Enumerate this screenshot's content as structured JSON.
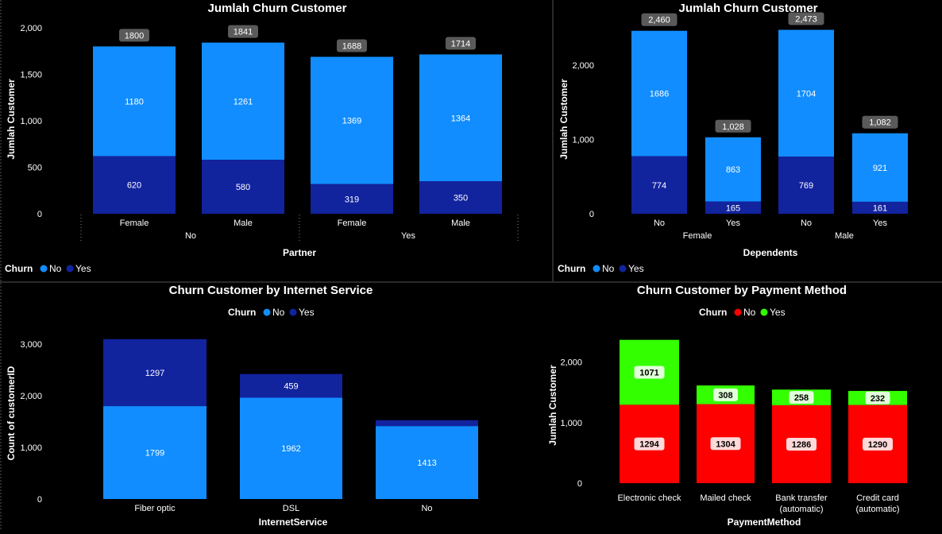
{
  "colors": {
    "no_blue": "#118DFF",
    "yes_navy": "#12239E",
    "no_red": "#FF0000",
    "yes_green": "#33FF00",
    "total_badge": "#5A5A5A",
    "divider": "#555555"
  },
  "chart_data": [
    {
      "id": "partner",
      "type": "bar",
      "stacked": true,
      "title": "Jumlah Churn Customer",
      "xlabel": "Partner",
      "ylabel": "Jumlah Customer",
      "ylim": [
        0,
        2000
      ],
      "yticks": [
        0,
        500,
        1000,
        1500,
        2000
      ],
      "ytick_labels": [
        "0",
        "500",
        "1,000",
        "1,500",
        "2,000"
      ],
      "groups": [
        "No",
        "Yes"
      ],
      "categories": [
        "Female",
        "Male",
        "Female",
        "Male"
      ],
      "category_group": [
        "No",
        "No",
        "Yes",
        "Yes"
      ],
      "legend": {
        "title": "Churn",
        "position": "bottom-left"
      },
      "series": [
        {
          "name": "No",
          "values": [
            1180,
            1261,
            1369,
            1364
          ]
        },
        {
          "name": "Yes",
          "values": [
            620,
            580,
            319,
            350
          ]
        }
      ],
      "totals": [
        "1800",
        "1841",
        "1688",
        "1714"
      ]
    },
    {
      "id": "dependents",
      "type": "bar",
      "stacked": true,
      "title": "Jumlah Churn Customer",
      "xlabel": "Dependents",
      "ylabel": "Jumlah Customer",
      "ylim": [
        0,
        2500
      ],
      "yticks": [
        0,
        1000,
        2000
      ],
      "ytick_labels": [
        "0",
        "1,000",
        "2,000"
      ],
      "groups": [
        "Female",
        "Male"
      ],
      "categories": [
        "No",
        "Yes",
        "No",
        "Yes"
      ],
      "category_group": [
        "Female",
        "Female",
        "Male",
        "Male"
      ],
      "legend": {
        "title": "Churn",
        "position": "bottom-left"
      },
      "series": [
        {
          "name": "No",
          "values": [
            1686,
            863,
            1704,
            921
          ]
        },
        {
          "name": "Yes",
          "values": [
            774,
            165,
            769,
            161
          ]
        }
      ],
      "totals": [
        "2,460",
        "1,028",
        "2,473",
        "1,082"
      ]
    },
    {
      "id": "internet",
      "type": "bar",
      "stacked": true,
      "title": "Churn Customer by Internet Service",
      "xlabel": "InternetService",
      "ylabel": "Count of customerID",
      "ylim": [
        0,
        3200
      ],
      "yticks": [
        0,
        1000,
        2000,
        3000
      ],
      "ytick_labels": [
        "0",
        "1,000",
        "2,000",
        "3,000"
      ],
      "categories": [
        "Fiber optic",
        "DSL",
        "No"
      ],
      "legend": {
        "title": "Churn",
        "position": "top-center"
      },
      "series": [
        {
          "name": "No",
          "values": [
            1799,
            1962,
            1413
          ]
        },
        {
          "name": "Yes",
          "values": [
            1297,
            459,
            113
          ]
        }
      ],
      "segment_labels": {
        "No": [
          "1799",
          "1962",
          "1413"
        ],
        "Yes": [
          "1297",
          "459",
          ""
        ]
      }
    },
    {
      "id": "payment",
      "type": "bar",
      "stacked": true,
      "title": "Churn Customer by Payment Method",
      "xlabel": "PaymentMethod",
      "ylabel": "Jumlah Customer",
      "ylim": [
        0,
        2400
      ],
      "yticks": [
        0,
        1000,
        2000
      ],
      "ytick_labels": [
        "0",
        "1,000",
        "2,000"
      ],
      "categories": [
        [
          "Electronic check"
        ],
        [
          "Mailed check"
        ],
        [
          "Bank transfer",
          "(automatic)"
        ],
        [
          "Credit card",
          "(automatic)"
        ]
      ],
      "legend": {
        "title": "Churn",
        "position": "top-center"
      },
      "series": [
        {
          "name": "No",
          "values": [
            1294,
            1304,
            1286,
            1290
          ]
        },
        {
          "name": "Yes",
          "values": [
            1071,
            308,
            258,
            232
          ]
        }
      ]
    }
  ]
}
